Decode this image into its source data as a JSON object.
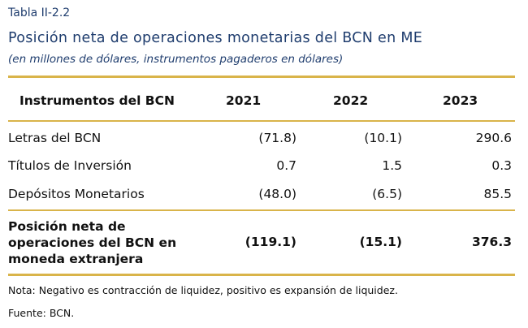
{
  "label": "Tabla II-2.2",
  "title": "Posición neta de operaciones monetarias del BCN en ME",
  "subtitle": "(en millones de dólares, instrumentos pagaderos en dólares)",
  "table": {
    "headers": [
      "Instrumentos del BCN",
      "2021",
      "2022",
      "2023"
    ],
    "rows": [
      [
        "Letras del BCN",
        "(71.8)",
        "(10.1)",
        "290.6"
      ],
      [
        "Títulos de Inversión",
        "0.7",
        "1.5",
        "0.3"
      ],
      [
        "Depósitos Monetarios",
        "(48.0)",
        "(6.5)",
        "85.5"
      ]
    ],
    "total": {
      "label_lines": [
        "Posición neta de",
        "operaciones del BCN en",
        "moneda extranjera"
      ],
      "values": [
        "(119.1)",
        "(15.1)",
        "376.3"
      ]
    }
  },
  "note": "Nota: Negativo es contracción de liquidez, positivo es expansión de liquidez.",
  "source": "Fuente: BCN."
}
